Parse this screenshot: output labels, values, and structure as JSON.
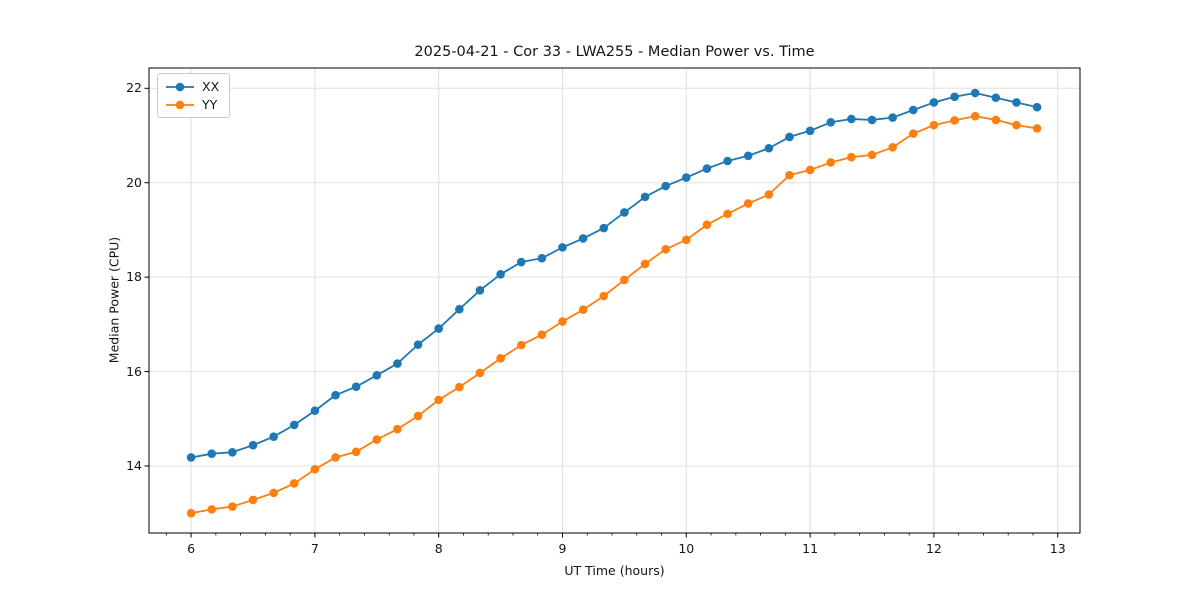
{
  "chart_data": {
    "type": "line",
    "title": "2025-04-21 - Cor 33 - LWA255 - Median Power vs. Time",
    "xlabel": "UT Time (hours)",
    "ylabel": "Median Power (CPU)",
    "xlim": [
      5.66,
      13.18
    ],
    "ylim": [
      12.58,
      22.43
    ],
    "x_major_ticks": [
      6,
      7,
      8,
      9,
      10,
      11,
      12,
      13
    ],
    "x_minor_tick_step": 0.2,
    "y_major_ticks": [
      14,
      16,
      18,
      20,
      22
    ],
    "grid": "major",
    "grid_color": "#e0e0e0",
    "spine_color": "#000000",
    "background_color": "#ffffff",
    "legend_position": "upper-left",
    "x": [
      6.0,
      6.1667,
      6.3333,
      6.5,
      6.6667,
      6.8333,
      7.0,
      7.1667,
      7.3333,
      7.5,
      7.6667,
      7.8333,
      8.0,
      8.1667,
      8.3333,
      8.5,
      8.6667,
      8.8333,
      9.0,
      9.1667,
      9.3333,
      9.5,
      9.6667,
      9.8333,
      10.0,
      10.1667,
      10.3333,
      10.5,
      10.6667,
      10.8333,
      11.0,
      11.1667,
      11.3333,
      11.5,
      11.6667,
      11.8333,
      12.0,
      12.1667,
      12.3333,
      12.5,
      12.6667,
      12.8333
    ],
    "series": [
      {
        "name": "XX",
        "color": "#1f77b4",
        "marker": "circle",
        "values": [
          14.18,
          14.26,
          14.29,
          14.44,
          14.62,
          14.87,
          15.17,
          15.5,
          15.68,
          15.92,
          16.17,
          16.57,
          16.91,
          17.32,
          17.72,
          18.06,
          18.32,
          18.4,
          18.63,
          18.82,
          19.04,
          19.37,
          19.7,
          19.93,
          20.11,
          20.3,
          20.46,
          20.57,
          20.73,
          20.97,
          21.1,
          21.28,
          21.35,
          21.33,
          21.38,
          21.54,
          21.7,
          21.82,
          21.9,
          21.8,
          21.7,
          21.6
        ]
      },
      {
        "name": "YY",
        "color": "#ff7f0e",
        "marker": "circle",
        "values": [
          13.0,
          13.08,
          13.14,
          13.28,
          13.43,
          13.63,
          13.93,
          14.18,
          14.3,
          14.56,
          14.78,
          15.06,
          15.4,
          15.67,
          15.97,
          16.28,
          16.56,
          16.78,
          17.06,
          17.31,
          17.6,
          17.94,
          18.28,
          18.59,
          18.79,
          19.11,
          19.34,
          19.56,
          19.75,
          20.16,
          20.27,
          20.43,
          20.54,
          20.59,
          20.75,
          21.04,
          21.22,
          21.32,
          21.41,
          21.33,
          21.22,
          21.15
        ]
      }
    ]
  }
}
